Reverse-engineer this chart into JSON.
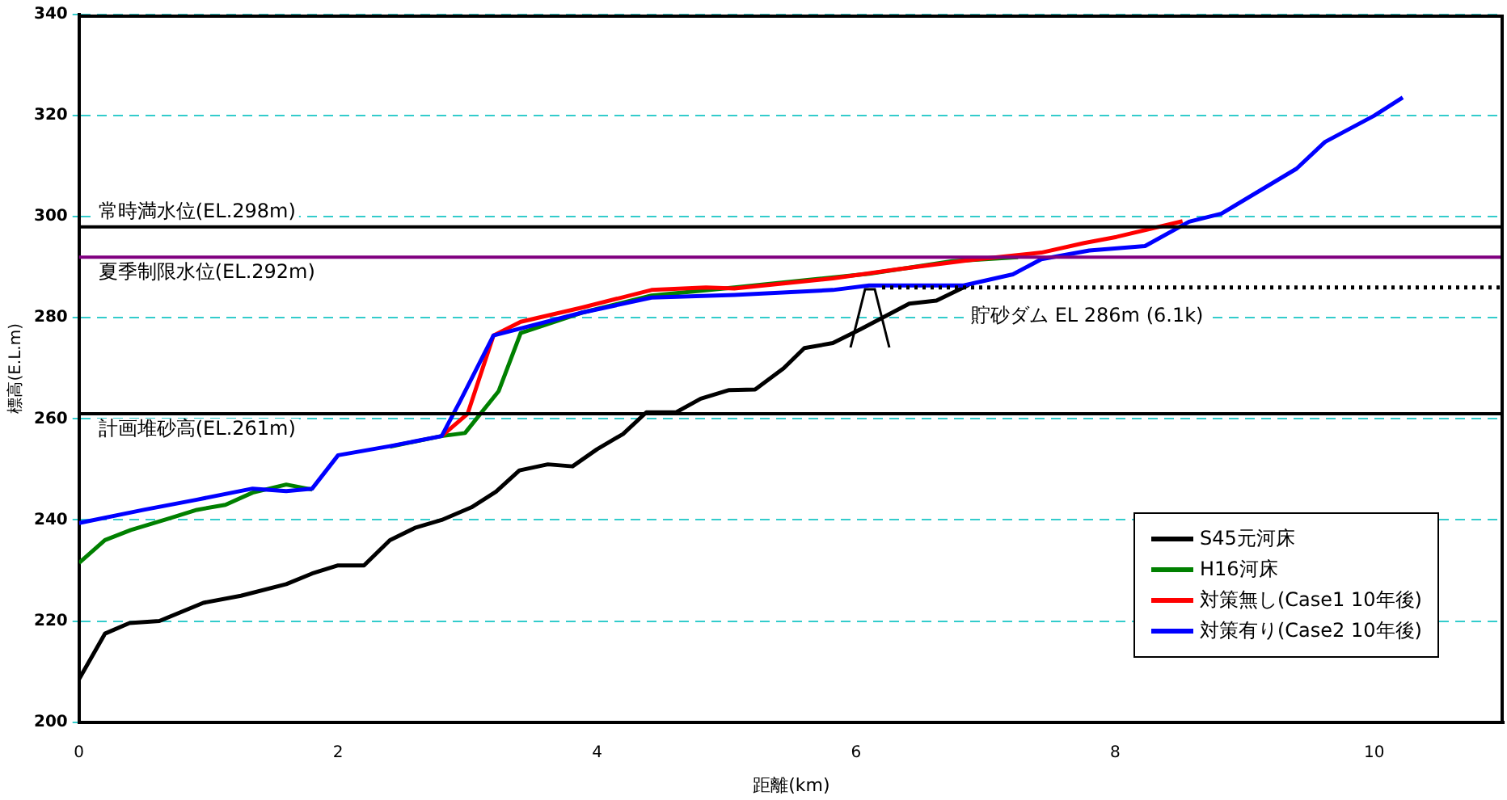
{
  "chart_data": {
    "type": "line",
    "xlabel": "距離(km)",
    "ylabel": "標高(E.L.m)",
    "xlim": [
      0,
      11
    ],
    "xticks": [
      0,
      2,
      4,
      6,
      8,
      10
    ],
    "ylim": [
      200,
      340
    ],
    "yticks": [
      200,
      220,
      240,
      260,
      280,
      300,
      320,
      340
    ],
    "grid": "y",
    "legend": "bottom right",
    "marker": "none",
    "line_style": "solid",
    "series": [
      {
        "name": "S45元河床",
        "color": "#000000",
        "x": [
          0,
          0.2,
          0.39,
          0.62,
          0.96,
          1.25,
          1.6,
          1.8,
          2.0,
          2.2,
          2.4,
          2.6,
          2.8,
          3.03,
          3.22,
          3.4,
          3.62,
          3.81,
          4.0,
          4.2,
          4.38,
          4.61,
          4.8,
          5.02,
          5.22,
          5.44,
          5.6,
          5.82,
          6.03,
          6.41,
          6.62,
          6.87
        ],
        "values": [
          208.5,
          217.5,
          219.6,
          220,
          223.6,
          225,
          227.3,
          229.4,
          231,
          231,
          236,
          238.5,
          240,
          242.5,
          245.6,
          249.8,
          251,
          250.6,
          254,
          257,
          261.3,
          261.3,
          264,
          265.7,
          265.8,
          270,
          274,
          275,
          277.7,
          282.8,
          283.4,
          286.5
        ]
      },
      {
        "name": "H16河床",
        "color": "#008000",
        "x": [
          0,
          0.2,
          0.4,
          0.71,
          0.91,
          1.13,
          1.34,
          1.6,
          1.8,
          2.0,
          2.4,
          2.8,
          2.98,
          3.24,
          3.41,
          3.88,
          4.42,
          5.06,
          6.1,
          6.74,
          7.25
        ],
        "values": [
          231.5,
          236,
          238,
          240.4,
          242,
          243,
          245.4,
          247,
          246,
          null,
          254.5,
          256.6,
          257.2,
          265.5,
          277,
          281,
          284.4,
          286,
          288.7,
          291.2,
          292
        ]
      },
      {
        "name": "対策無し(Case1 10年後)",
        "color": "#ff0000",
        "x": [
          2.8,
          3.0,
          3.2,
          3.41,
          3.88,
          4.42,
          4.84,
          5.06,
          5.82,
          6.32,
          6.87,
          7.43,
          7.76,
          8.01,
          8.52
        ],
        "values": [
          256.6,
          261,
          276.5,
          279.2,
          282,
          285.5,
          286,
          285.8,
          287.8,
          289.6,
          291.4,
          292.9,
          294.8,
          296,
          299.1
        ]
      },
      {
        "name": "対策有り(Case2 10年後)",
        "color": "#0000ff",
        "x": [
          0,
          0.5,
          0.91,
          1.34,
          1.6,
          1.8,
          2.0,
          2.4,
          2.8,
          2.94,
          3.2,
          3.88,
          4.42,
          5.06,
          5.82,
          6.1,
          6.83,
          7.21,
          7.43,
          7.8,
          8.23,
          8.57,
          8.82,
          9.4,
          9.62,
          10.0,
          10.22
        ],
        "values": [
          239.4,
          242,
          244,
          246.2,
          245.7,
          246.2,
          252.8,
          254.6,
          256.6,
          263.4,
          276.5,
          281,
          284,
          284.5,
          285.5,
          286.4,
          286.4,
          288.6,
          291.6,
          293.3,
          294.2,
          299,
          300.6,
          309.5,
          314.8,
          320,
          323.6
        ]
      },
      {
        "color": "#000000",
        "line_style": "dotted",
        "x": [
          6.2,
          11
        ],
        "values": [
          286,
          286
        ]
      }
    ],
    "ref_lines": [
      {
        "axis": "y",
        "value": 298,
        "label": "常時満水位(EL.298m)",
        "color": "#000000"
      },
      {
        "axis": "y",
        "value": 292,
        "label": "夏季制限水位(EL.292m)",
        "color": "#800080"
      },
      {
        "axis": "y",
        "value": 261,
        "label": "計画堆砂高(EL.261m)",
        "color": "#000000"
      }
    ],
    "annotations": [
      "貯砂ダム EL 286m (6.1k)"
    ]
  }
}
